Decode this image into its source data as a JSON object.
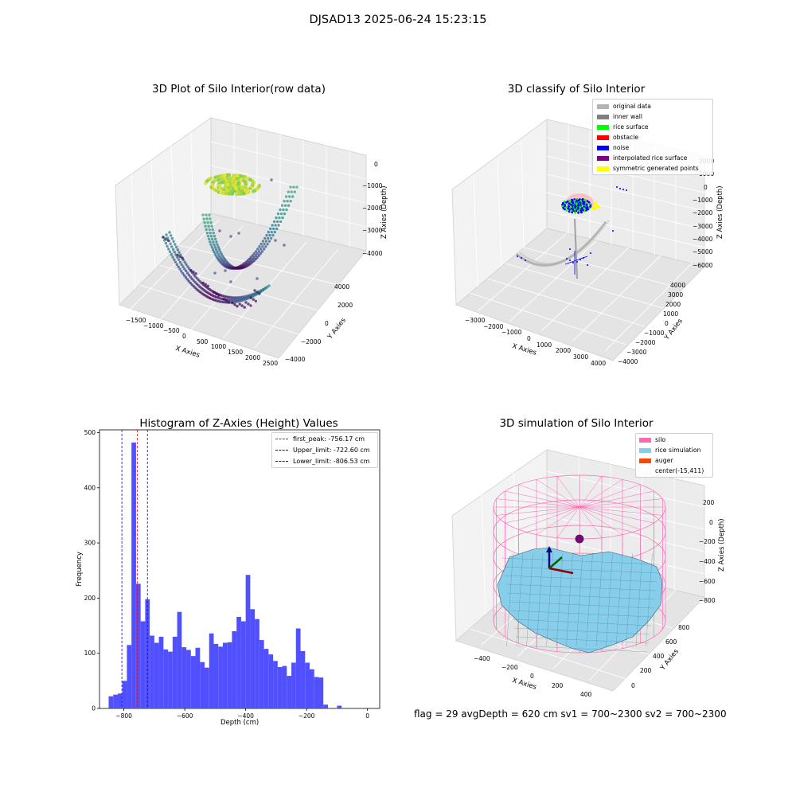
{
  "figure": {
    "suptitle": "DJSAD13 2025-06-24 15:23:15",
    "status_text": "flag = 29  avgDepth = 620 cm  sv1 = 700~2300  sv2 = 700~2300"
  },
  "colors": {
    "histogram_bar": "#5050ff",
    "first_peak_line": "#ff0000",
    "limit_lines": "#0000ff",
    "pane_light": "#f2f2f2",
    "pane_dark": "#e6e6e6",
    "grid": "#ffffff",
    "silo_wire": "#ff69b4",
    "rice_surface": "#87ceeb",
    "auger": "#ff4500"
  },
  "icons": [
    "legend-patch-icon",
    "viridis-point-icon",
    "auger-axes-icon"
  ],
  "chart_data": [
    {
      "id": "raw",
      "type": "scatter",
      "projection": "3d",
      "title": "3D Plot of Silo Interior(row data)",
      "xlabel": "X Axies",
      "ylabel": "Y Axies",
      "zlabel": "Z Axies (Depth)",
      "xticks": [
        "−1500",
        "−1000",
        "−500",
        "0",
        "500",
        "1000",
        "1500",
        "2000",
        "2500"
      ],
      "yticks": [
        "−4000",
        "−2000",
        "0",
        "2000",
        "4000"
      ],
      "zticks": [
        "−4000",
        "−3000",
        "−2000",
        "−1000",
        "0"
      ],
      "xlim": [
        -1700,
        2600
      ],
      "ylim": [
        -4500,
        4500
      ],
      "zlim": [
        -4600,
        250
      ],
      "colormap": "viridis",
      "grid": true
    },
    {
      "id": "classify",
      "type": "scatter",
      "projection": "3d",
      "title": "3D classify of Silo Interior",
      "xlabel": "X Axies",
      "ylabel": "Y Axies",
      "zlabel": "Z Axies (Depth)",
      "xticks": [
        "−3000",
        "−2000",
        "−1000",
        "0",
        "1000",
        "2000",
        "3000",
        "4000"
      ],
      "yticks": [
        "−4000",
        "−3000",
        "−2000",
        "−1000",
        "0",
        "1000",
        "2000",
        "3000",
        "4000"
      ],
      "zticks": [
        "−6000",
        "−5000",
        "−4000",
        "−3000",
        "−2000",
        "−1000",
        "0",
        "1000",
        "2000"
      ],
      "xlim": [
        -3500,
        4500
      ],
      "ylim": [
        -4500,
        4500
      ],
      "zlim": [
        -6500,
        2500
      ],
      "legend_position": "upper right",
      "grid": true,
      "legend": [
        {
          "label": "original data",
          "color": "#b3b3b3"
        },
        {
          "label": "inner wall",
          "color": "#808080"
        },
        {
          "label": "rice surface",
          "color": "#00ff00"
        },
        {
          "label": "obstacle",
          "color": "#ff0000"
        },
        {
          "label": "noise",
          "color": "#0000ff"
        },
        {
          "label": "interpolated rice surface",
          "color": "#800080"
        },
        {
          "label": "symmetric generated points",
          "color": "#ffff00"
        }
      ]
    },
    {
      "id": "hist",
      "type": "bar",
      "title": "Histogram of Z-Axies (Height) Values",
      "xlabel": "Depth (cm)",
      "ylabel": "Frequency",
      "xlim": [
        -880,
        40
      ],
      "ylim": [
        0,
        505
      ],
      "xticks": [
        -800,
        -600,
        -400,
        -200,
        0
      ],
      "xtick_labels": [
        "−800",
        "−600",
        "−400",
        "−200",
        "0"
      ],
      "yticks": [
        0,
        100,
        200,
        300,
        400,
        500
      ],
      "yticks_labels": [
        "0",
        "100",
        "200",
        "300",
        "400",
        "500"
      ],
      "legend_position": "upper right",
      "bin_start": -850,
      "bin_width": 15,
      "values": [
        22,
        25,
        27,
        50,
        115,
        482,
        226,
        158,
        198,
        132,
        119,
        130,
        107,
        103,
        130,
        175,
        111,
        106,
        95,
        110,
        84,
        74,
        136,
        117,
        112,
        119,
        120,
        140,
        166,
        158,
        242,
        180,
        162,
        124,
        108,
        98,
        86,
        75,
        77,
        59,
        83,
        145,
        104,
        83,
        71,
        57,
        56,
        7,
        0,
        0,
        5
      ],
      "vlines": [
        {
          "x": -756.17,
          "label": "first_peak: -756.17 cm",
          "color": "#ff0000"
        },
        {
          "x": -722.6,
          "label": "Upper_limit: -722.60 cm",
          "color": "#0000ff"
        },
        {
          "x": -806.53,
          "label": "Lower_limit: -806.53 cm",
          "color": "#0000ff"
        }
      ]
    },
    {
      "id": "sim",
      "type": "surface",
      "projection": "3d",
      "title": "3D simulation of Silo Interior",
      "xlabel": "X Axies",
      "ylabel": "Y Axies",
      "zlabel": "Z Axies (Depth)",
      "xticks": [
        "−400",
        "−200",
        "0",
        "200",
        "400"
      ],
      "yticks": [
        "0",
        "200",
        "400",
        "600",
        "800"
      ],
      "zticks": [
        "−800",
        "−600",
        "−400",
        "−200",
        "0",
        "200"
      ],
      "xlim": [
        -520,
        520
      ],
      "ylim": [
        -100,
        920
      ],
      "zlim": [
        -900,
        300
      ],
      "legend_position": "upper right",
      "grid": true,
      "legend": [
        {
          "label": "silo",
          "color": "#ff69b4"
        },
        {
          "label": "rice simulation",
          "color": "#87ceeb"
        },
        {
          "label": "auger",
          "color": "#ff4500"
        },
        {
          "label": "center(-15,411)",
          "color": ""
        }
      ]
    }
  ]
}
